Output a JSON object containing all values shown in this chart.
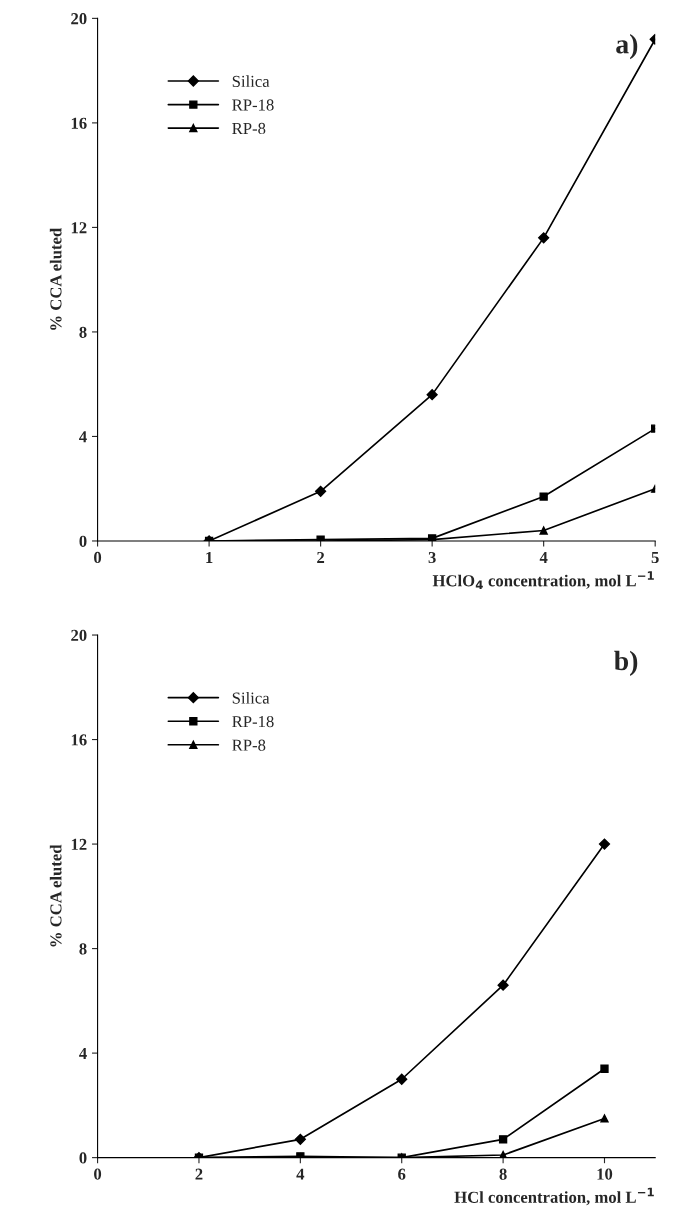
{
  "chart_data": [
    {
      "type": "line",
      "title": "a)",
      "xlabel": "HClO$_{4}$ concentration, mol L$^{−1}$",
      "ylabel": "% CCA eluted",
      "x": [
        1,
        2,
        3,
        4,
        5
      ],
      "xlim": [
        0,
        5
      ],
      "xticks": [
        0,
        1,
        2,
        3,
        4,
        5
      ],
      "ylim": [
        0,
        20
      ],
      "yticks": [
        0,
        4,
        8,
        12,
        16,
        20
      ],
      "grid": false,
      "legend": "top left",
      "series": [
        {
          "name": "Silica",
          "color": "#000000",
          "marker": "diamond",
          "values": [
            0,
            1.9,
            5.6,
            11.6,
            19.2
          ]
        },
        {
          "name": "RP-18",
          "color": "#000000",
          "marker": "square",
          "values": [
            0,
            0.05,
            0.1,
            1.7,
            4.3
          ]
        },
        {
          "name": "RP-8",
          "color": "#000000",
          "marker": "triangle",
          "values": [
            0,
            0,
            0.05,
            0.4,
            2.0
          ]
        }
      ]
    },
    {
      "type": "line",
      "title": "b)",
      "xlabel": "HCl concentration, mol L$^{−1}$",
      "ylabel": "% CCA eluted",
      "x": [
        2,
        4,
        6,
        8,
        10
      ],
      "xlim": [
        0,
        11
      ],
      "xticks": [
        0,
        2,
        4,
        6,
        8,
        10
      ],
      "ylim": [
        0,
        20
      ],
      "yticks": [
        0,
        4,
        8,
        12,
        16,
        20
      ],
      "grid": false,
      "legend": "top left",
      "series": [
        {
          "name": "Silica",
          "color": "#000000",
          "marker": "diamond",
          "values": [
            0,
            0.7,
            3.0,
            6.6,
            12.0
          ]
        },
        {
          "name": "RP-18",
          "color": "#000000",
          "marker": "square",
          "values": [
            0,
            0.05,
            0,
            0.7,
            3.4
          ]
        },
        {
          "name": "RP-8",
          "color": "#000000",
          "marker": "triangle",
          "values": [
            0,
            0,
            0,
            0.1,
            1.5
          ]
        }
      ]
    }
  ]
}
